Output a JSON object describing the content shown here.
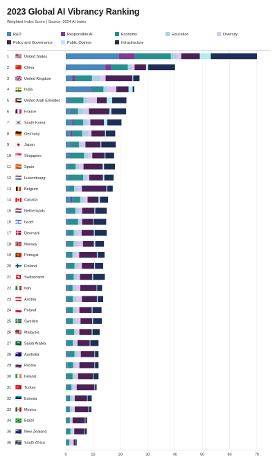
{
  "title": "2023 Global AI Vibrancy Ranking",
  "subtitle": "Weighted Index Score | Source: 2024 AI Index",
  "colors": {
    "rnd": "#4a88b9",
    "responsible_ai": "#7a3f8f",
    "economy": "#2b8f91",
    "education": "#a8d3e6",
    "diversity": "#dcc6ee",
    "policy": "#4a2154",
    "public_opinion": "#b3ecf4",
    "infrastructure": "#1e2f57"
  },
  "legend": [
    {
      "key": "rnd",
      "label": "R&D"
    },
    {
      "key": "responsible_ai",
      "label": "Responsible AI"
    },
    {
      "key": "economy",
      "label": "Economy"
    },
    {
      "key": "education",
      "label": "Education"
    },
    {
      "key": "diversity",
      "label": "Diversity"
    },
    {
      "key": "policy",
      "label": "Policy and Governance"
    },
    {
      "key": "public_opinion",
      "label": "Public Opinion"
    },
    {
      "key": "infrastructure",
      "label": "Infrastructure"
    }
  ],
  "chart_data": {
    "type": "bar",
    "orientation": "horizontal",
    "stacked": true,
    "xlim": [
      0,
      70
    ],
    "xticks": [
      0,
      10,
      20,
      30,
      40,
      50,
      60,
      70
    ],
    "segment_order": [
      "rnd",
      "responsible_ai",
      "economy",
      "education",
      "diversity",
      "policy",
      "public_opinion",
      "infrastructure"
    ],
    "rows": [
      {
        "rank": 1,
        "country": "United States",
        "flag": "🇺🇸",
        "values": {
          "rnd": 19.5,
          "responsible_ai": 5.8,
          "economy": 13.2,
          "education": 2.2,
          "diversity": 1.6,
          "policy": 6.8,
          "public_opinion": 4.0,
          "infrastructure": 16.9
        }
      },
      {
        "rank": 2,
        "country": "China",
        "flag": "🇨🇳",
        "values": {
          "rnd": 14.5,
          "responsible_ai": 2.2,
          "economy": 6.0,
          "education": 1.5,
          "diversity": 1.0,
          "policy": 4.2,
          "public_opinion": 0.8,
          "infrastructure": 9.8
        }
      },
      {
        "rank": 3,
        "country": "United Kingdom",
        "flag": "🇬🇧",
        "values": {
          "rnd": 2.4,
          "responsible_ai": 1.0,
          "economy": 6.2,
          "education": 3.0,
          "diversity": 2.0,
          "policy": 9.8,
          "public_opinion": 0.3,
          "infrastructure": 2.3
        }
      },
      {
        "rank": 4,
        "country": "India",
        "flag": "🇮🇳",
        "values": {
          "rnd": 9.5,
          "responsible_ai": 0.3,
          "economy": 4.0,
          "education": 1.2,
          "diversity": 3.5,
          "policy": 4.5,
          "public_opinion": 1.5,
          "infrastructure": 0.6
        }
      },
      {
        "rank": 5,
        "country": "United Arab Emirates",
        "flag": "🇦🇪",
        "values": {
          "rnd": 0.8,
          "responsible_ai": 0.2,
          "economy": 5.5,
          "education": 1.4,
          "diversity": 3.5,
          "policy": 3.6,
          "public_opinion": 2.0,
          "infrastructure": 5.2
        }
      },
      {
        "rank": 6,
        "country": "France",
        "flag": "🇫🇷",
        "values": {
          "rnd": 1.7,
          "responsible_ai": 0.3,
          "economy": 2.5,
          "education": 2.0,
          "diversity": 2.0,
          "policy": 7.5,
          "public_opinion": 0.7,
          "infrastructure": 5.4
        }
      },
      {
        "rank": 7,
        "country": "South Korea",
        "flag": "🇰🇷",
        "values": {
          "rnd": 2.4,
          "responsible_ai": 0.5,
          "economy": 3.5,
          "education": 1.6,
          "diversity": 1.0,
          "policy": 5.0,
          "public_opinion": 1.2,
          "infrastructure": 5.2
        }
      },
      {
        "rank": 8,
        "country": "Germany",
        "flag": "🇩🇪",
        "values": {
          "rnd": 1.8,
          "responsible_ai": 0.7,
          "economy": 3.5,
          "education": 2.2,
          "diversity": 1.2,
          "policy": 5.0,
          "public_opinion": 0.3,
          "infrastructure": 3.4
        }
      },
      {
        "rank": 9,
        "country": "Japan",
        "flag": "🇯🇵",
        "values": {
          "rnd": 1.6,
          "responsible_ai": 0.2,
          "economy": 3.0,
          "education": 1.2,
          "diversity": 1.2,
          "policy": 5.5,
          "public_opinion": 0.3,
          "infrastructure": 5.3
        }
      },
      {
        "rank": 10,
        "country": "Singapore",
        "flag": "🇸🇬",
        "values": {
          "rnd": 1.0,
          "responsible_ai": 0.2,
          "economy": 5.5,
          "education": 1.5,
          "diversity": 1.5,
          "policy": 4.5,
          "public_opinion": 0.3,
          "infrastructure": 3.2
        }
      },
      {
        "rank": 11,
        "country": "Spain",
        "flag": "🇪🇸",
        "values": {
          "rnd": 0.9,
          "responsible_ai": 0.2,
          "economy": 2.5,
          "education": 1.3,
          "diversity": 1.6,
          "policy": 7.0,
          "public_opinion": 0.5,
          "infrastructure": 4.0
        }
      },
      {
        "rank": 12,
        "country": "Luxembourg",
        "flag": "🇱🇺",
        "values": {
          "rnd": 0.8,
          "responsible_ai": 0.1,
          "economy": 5.5,
          "education": 1.2,
          "diversity": 1.0,
          "policy": 5.0,
          "public_opinion": 0.5,
          "infrastructure": 3.4
        }
      },
      {
        "rank": 13,
        "country": "Belgium",
        "flag": "🇧🇪",
        "values": {
          "rnd": 0.9,
          "responsible_ai": 0.2,
          "economy": 2.0,
          "education": 1.3,
          "diversity": 1.5,
          "policy": 9.0,
          "public_opinion": 0.3,
          "infrastructure": 2.0
        }
      },
      {
        "rank": 14,
        "country": "Canada",
        "flag": "🇨🇦",
        "values": {
          "rnd": 1.7,
          "responsible_ai": 0.6,
          "economy": 3.0,
          "education": 1.5,
          "diversity": 1.2,
          "policy": 4.0,
          "public_opinion": 0.5,
          "infrastructure": 3.0
        }
      },
      {
        "rank": 15,
        "country": "Netherlands",
        "flag": "🇳🇱",
        "values": {
          "rnd": 0.8,
          "responsible_ai": 0.2,
          "economy": 2.5,
          "education": 1.3,
          "diversity": 1.2,
          "policy": 4.5,
          "public_opinion": 0.3,
          "infrastructure": 4.2
        }
      },
      {
        "rank": 16,
        "country": "Israel",
        "flag": "🇮🇱",
        "values": {
          "rnd": 0.8,
          "responsible_ai": 0.2,
          "economy": 3.5,
          "education": 0.7,
          "diversity": 0.8,
          "policy": 4.0,
          "public_opinion": 0.2,
          "infrastructure": 4.6
        }
      },
      {
        "rank": 17,
        "country": "Denmark",
        "flag": "🇩🇰",
        "values": {
          "rnd": 0.7,
          "responsible_ai": 0.2,
          "economy": 2.0,
          "education": 1.3,
          "diversity": 1.6,
          "policy": 4.5,
          "public_opinion": 0.3,
          "infrastructure": 4.4
        }
      },
      {
        "rank": 18,
        "country": "Norway",
        "flag": "🇳🇴",
        "values": {
          "rnd": 0.6,
          "responsible_ai": 0.2,
          "economy": 2.0,
          "education": 1.5,
          "diversity": 2.0,
          "policy": 4.0,
          "public_opinion": 0.5,
          "infrastructure": 3.2
        }
      },
      {
        "rank": 19,
        "country": "Portugal",
        "flag": "🇵🇹",
        "values": {
          "rnd": 0.5,
          "responsible_ai": 0.1,
          "economy": 1.8,
          "education": 1.0,
          "diversity": 1.5,
          "policy": 6.5,
          "public_opinion": 0.3,
          "infrastructure": 2.5
        }
      },
      {
        "rank": 20,
        "country": "Finland",
        "flag": "🇫🇮",
        "values": {
          "rnd": 0.5,
          "responsible_ai": 0.2,
          "economy": 2.5,
          "education": 1.5,
          "diversity": 1.2,
          "policy": 4.5,
          "public_opinion": 0.3,
          "infrastructure": 3.0
        }
      },
      {
        "rank": 21,
        "country": "Switzerland",
        "flag": "🇨🇭",
        "values": {
          "rnd": 0.6,
          "responsible_ai": 0.3,
          "economy": 2.0,
          "education": 1.3,
          "diversity": 1.0,
          "policy": 4.5,
          "public_opinion": 0.3,
          "infrastructure": 4.3
        }
      },
      {
        "rank": 22,
        "country": "Italy",
        "flag": "🇮🇹",
        "values": {
          "rnd": 0.8,
          "responsible_ai": 0.2,
          "economy": 1.5,
          "education": 1.3,
          "diversity": 1.5,
          "policy": 6.0,
          "public_opinion": 0.2,
          "infrastructure": 1.8
        }
      },
      {
        "rank": 23,
        "country": "Austria",
        "flag": "🇦🇹",
        "values": {
          "rnd": 0.5,
          "responsible_ai": 0.1,
          "economy": 2.0,
          "education": 1.3,
          "diversity": 2.0,
          "policy": 5.5,
          "public_opinion": 0.3,
          "infrastructure": 2.0
        }
      },
      {
        "rank": 24,
        "country": "Poland",
        "flag": "🇵🇱",
        "values": {
          "rnd": 0.5,
          "responsible_ai": 0.1,
          "economy": 2.0,
          "education": 1.2,
          "diversity": 1.2,
          "policy": 4.5,
          "public_opinion": 0.3,
          "infrastructure": 3.3
        }
      },
      {
        "rank": 25,
        "country": "Sweden",
        "flag": "🇸🇪",
        "values": {
          "rnd": 0.5,
          "responsible_ai": 0.1,
          "economy": 2.0,
          "education": 1.3,
          "diversity": 1.5,
          "policy": 4.3,
          "public_opinion": 0.3,
          "infrastructure": 3.2
        }
      },
      {
        "rank": 26,
        "country": "Malaysia",
        "flag": "🇲🇾",
        "values": {
          "rnd": 0.5,
          "responsible_ai": 0.1,
          "economy": 2.5,
          "education": 0.9,
          "diversity": 1.0,
          "policy": 4.5,
          "public_opinion": 0.3,
          "infrastructure": 2.6
        }
      },
      {
        "rank": 27,
        "country": "Saudi Arabia",
        "flag": "🇸🇦",
        "values": {
          "rnd": 0.5,
          "responsible_ai": 0.1,
          "economy": 2.0,
          "education": 0.7,
          "diversity": 1.0,
          "policy": 4.5,
          "public_opinion": 0.2,
          "infrastructure": 3.0
        }
      },
      {
        "rank": 28,
        "country": "Australia",
        "flag": "🇦🇺",
        "values": {
          "rnd": 0.8,
          "responsible_ai": 0.2,
          "economy": 2.2,
          "education": 1.3,
          "diversity": 1.0,
          "policy": 5.0,
          "public_opinion": 0.2,
          "infrastructure": 1.3
        }
      },
      {
        "rank": 29,
        "country": "Russia",
        "flag": "🇷🇺",
        "values": {
          "rnd": 0.6,
          "responsible_ai": 0.1,
          "economy": 2.0,
          "education": 1.0,
          "diversity": 1.3,
          "policy": 5.5,
          "public_opinion": 0.2,
          "infrastructure": 1.3
        }
      },
      {
        "rank": 30,
        "country": "Ireland",
        "flag": "🇮🇪",
        "values": {
          "rnd": 0.4,
          "responsible_ai": 0.1,
          "economy": 2.0,
          "education": 1.0,
          "diversity": 1.0,
          "policy": 5.5,
          "public_opinion": 0.2,
          "infrastructure": 1.8
        }
      },
      {
        "rank": 31,
        "country": "Turkey",
        "flag": "🇹🇷",
        "values": {
          "rnd": 0.5,
          "responsible_ai": 0.1,
          "economy": 1.5,
          "education": 0.9,
          "diversity": 1.0,
          "policy": 6.5,
          "public_opinion": 0.2,
          "infrastructure": 0.6
        }
      },
      {
        "rank": 32,
        "country": "Estonia",
        "flag": "🇪🇪",
        "values": {
          "rnd": 0.3,
          "responsible_ai": 0.1,
          "economy": 1.2,
          "education": 0.9,
          "diversity": 0.8,
          "policy": 4.5,
          "public_opinion": 0.2,
          "infrastructure": 1.5
        }
      },
      {
        "rank": 33,
        "country": "Mexico",
        "flag": "🇲🇽",
        "values": {
          "rnd": 0.4,
          "responsible_ai": 0.1,
          "economy": 1.0,
          "education": 0.8,
          "diversity": 1.0,
          "policy": 5.0,
          "public_opinion": 0.2,
          "infrastructure": 0.9
        }
      },
      {
        "rank": 34,
        "country": "Brazil",
        "flag": "🇧🇷",
        "values": {
          "rnd": 0.4,
          "responsible_ai": 0.1,
          "economy": 1.0,
          "education": 0.5,
          "diversity": 0.5,
          "policy": 4.5,
          "public_opinion": 0.2,
          "infrastructure": 0.6
        }
      },
      {
        "rank": 35,
        "country": "New Zealand",
        "flag": "🇳🇿",
        "values": {
          "rnd": 0.3,
          "responsible_ai": 0.1,
          "economy": 1.3,
          "education": 0.8,
          "diversity": 0.6,
          "policy": 3.5,
          "public_opinion": 0.2,
          "infrastructure": 0.9
        }
      },
      {
        "rank": 36,
        "country": "South Africa",
        "flag": "🇿🇦",
        "values": {
          "rnd": 0.2,
          "responsible_ai": 0.1,
          "economy": 1.0,
          "education": 0.7,
          "diversity": 0.9,
          "policy": 0.8,
          "public_opinion": 0.1,
          "infrastructure": 0.2
        }
      }
    ]
  }
}
